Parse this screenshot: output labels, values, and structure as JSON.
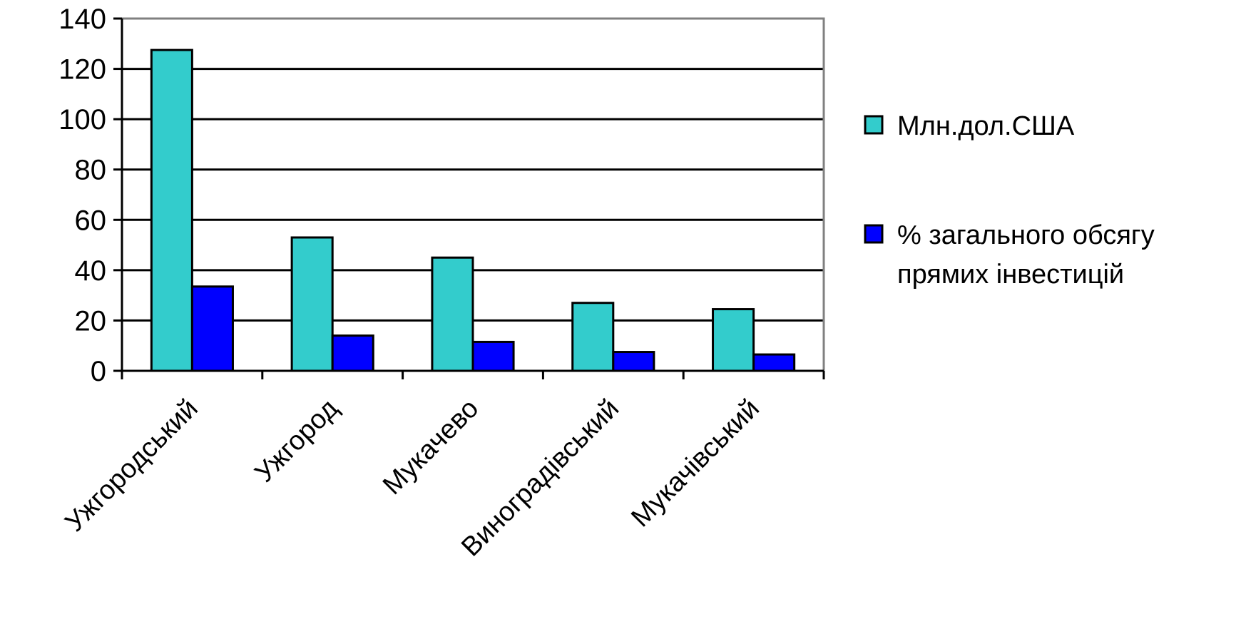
{
  "chart_data": {
    "type": "bar",
    "categories": [
      "Ужгородський",
      "Ужгород",
      "Мукачево",
      "Виноградівський",
      "Мукачівський"
    ],
    "series": [
      {
        "name": "Млн.дол.США",
        "color": "#33CCCC",
        "values": [
          127.5,
          53,
          45,
          27,
          24.5
        ]
      },
      {
        "name": "% загального обсягу прямих інвестицій",
        "color": "#0000FF",
        "values": [
          33.5,
          14,
          11.5,
          7.5,
          6.5
        ]
      }
    ],
    "ylim": [
      0,
      140
    ],
    "yticks": [
      0,
      20,
      40,
      60,
      80,
      100,
      120,
      140
    ],
    "grid": true,
    "legend": "right"
  }
}
